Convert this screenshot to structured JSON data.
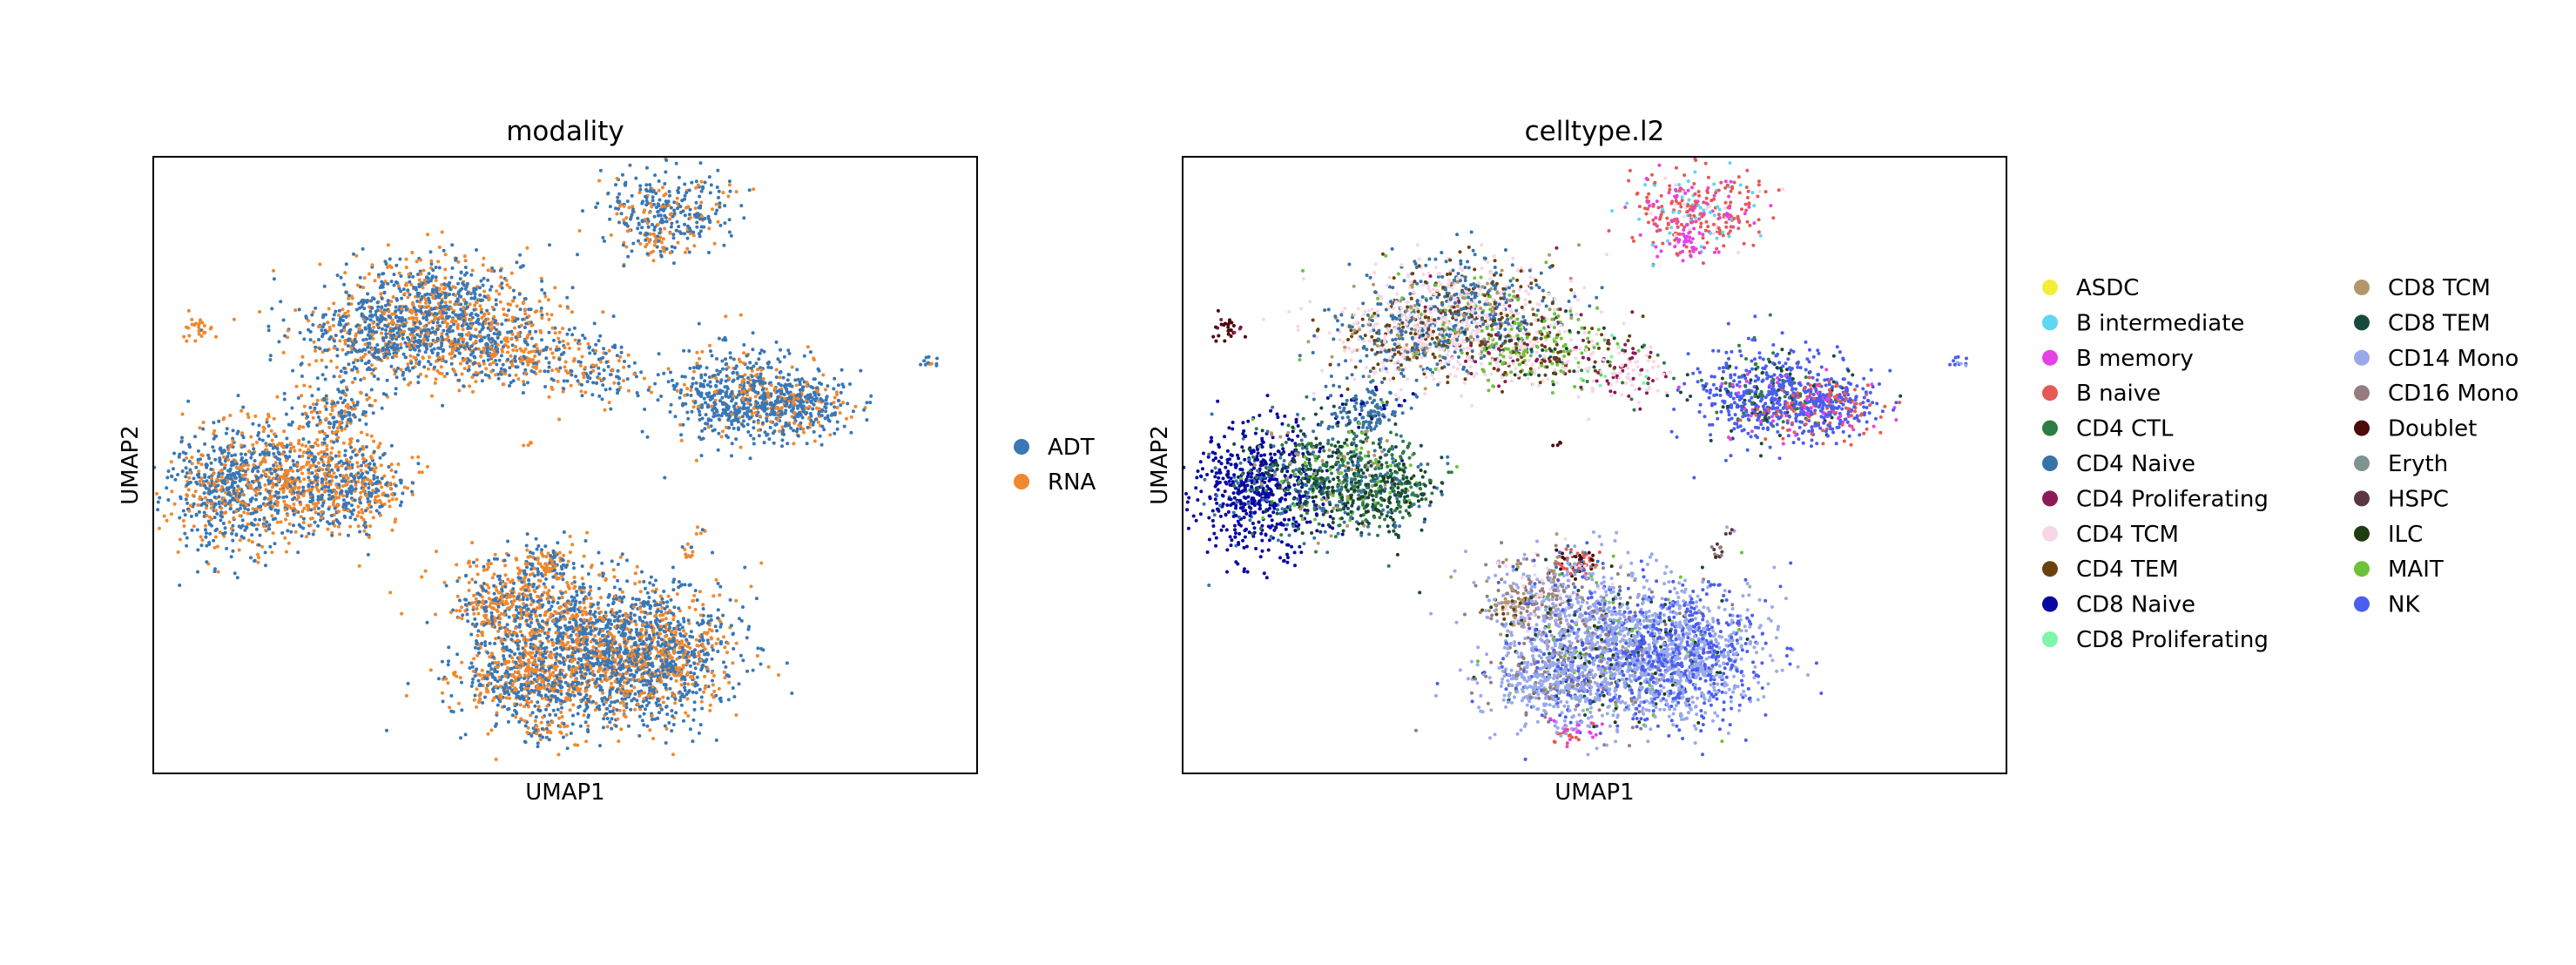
{
  "chart_data": [
    {
      "type": "scatter",
      "title": "modality",
      "xlabel": "UMAP1",
      "ylabel": "UMAP2",
      "xticks": "none",
      "yticks": "none",
      "grid": false,
      "legend_position": "right",
      "legend": [
        {
          "label": "ADT",
          "color": "#3a77b5"
        },
        {
          "label": "RNA",
          "color": "#f0882e"
        }
      ]
    },
    {
      "type": "scatter",
      "title": "celltype.l2",
      "xlabel": "UMAP1",
      "ylabel": "UMAP2",
      "xticks": "none",
      "yticks": "none",
      "grid": false,
      "legend_position": "right",
      "legend_columns": 2,
      "legend": [
        {
          "label": "ASDC",
          "color": "#f5ee38"
        },
        {
          "label": "B intermediate",
          "color": "#5fd6f2"
        },
        {
          "label": "B memory",
          "color": "#e542e6"
        },
        {
          "label": "B naive",
          "color": "#e55a54"
        },
        {
          "label": "CD4 CTL",
          "color": "#2e7d44"
        },
        {
          "label": "CD4 Naive",
          "color": "#3873a8"
        },
        {
          "label": "CD4 Proliferating",
          "color": "#8c1a57"
        },
        {
          "label": "CD4 TCM",
          "color": "#f7d7e6"
        },
        {
          "label": "CD4 TEM",
          "color": "#6b4110"
        },
        {
          "label": "CD8 Naive",
          "color": "#0808a0"
        },
        {
          "label": "CD8 Proliferating",
          "color": "#7ef5a8"
        },
        {
          "label": "CD8 TCM",
          "color": "#b3976a"
        },
        {
          "label": "CD8 TEM",
          "color": "#174a3c"
        },
        {
          "label": "CD14 Mono",
          "color": "#99aaeb"
        },
        {
          "label": "CD16 Mono",
          "color": "#967b80"
        },
        {
          "label": "Doublet",
          "color": "#4d0a0a"
        },
        {
          "label": "Eryth",
          "color": "#7f9490"
        },
        {
          "label": "HSPC",
          "color": "#5c3640"
        },
        {
          "label": "ILC",
          "color": "#1f3d10"
        },
        {
          "label": "MAIT",
          "color": "#6cc33a"
        },
        {
          "label": "NK",
          "color": "#4a5ef0"
        }
      ]
    }
  ]
}
